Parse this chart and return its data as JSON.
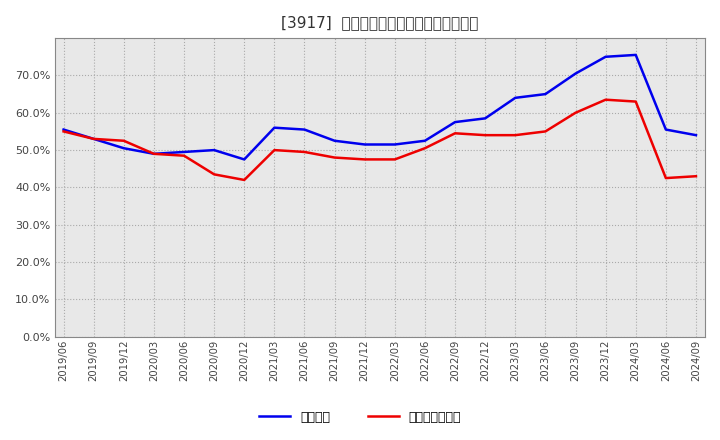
{
  "title": "[3917]  固定比率、固定長期適合率の推移",
  "background_color": "#ffffff",
  "plot_bg_color": "#e8e8e8",
  "grid_color": "#aaaaaa",
  "dates": [
    "2019/06",
    "2019/09",
    "2019/12",
    "2020/03",
    "2020/06",
    "2020/09",
    "2020/12",
    "2021/03",
    "2021/06",
    "2021/09",
    "2021/12",
    "2022/03",
    "2022/06",
    "2022/09",
    "2022/12",
    "2023/03",
    "2023/06",
    "2023/09",
    "2023/12",
    "2024/03",
    "2024/06",
    "2024/09"
  ],
  "blue_line": [
    55.5,
    53.0,
    50.5,
    49.0,
    49.5,
    50.0,
    47.5,
    56.0,
    55.5,
    52.5,
    51.5,
    51.5,
    52.5,
    57.5,
    58.5,
    64.0,
    65.0,
    70.5,
    75.0,
    75.5,
    55.5,
    54.0
  ],
  "red_line": [
    55.0,
    53.0,
    52.5,
    49.0,
    48.5,
    43.5,
    42.0,
    50.0,
    49.5,
    48.0,
    47.5,
    47.5,
    50.5,
    54.5,
    54.0,
    54.0,
    55.0,
    60.0,
    63.5,
    63.0,
    42.5,
    43.0
  ],
  "blue_label": "固定比率",
  "red_label": "固定長期適合率",
  "ylim": [
    0,
    80
  ],
  "yticks": [
    0,
    10,
    20,
    30,
    40,
    50,
    60,
    70
  ],
  "blue_color": "#0000ee",
  "red_color": "#ee0000",
  "line_width": 1.8
}
